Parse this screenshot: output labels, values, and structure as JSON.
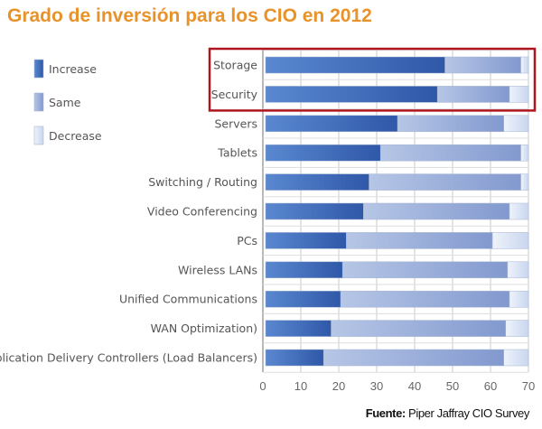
{
  "chart_data": {
    "type": "bar",
    "orientation": "horizontal",
    "stacked": true,
    "title": "Grado de inversión para los CIO en 2012",
    "categories": [
      "Storage",
      "Security",
      "Servers",
      "Tablets",
      "Switching / Routing",
      "Video Conferencing",
      "PCs",
      "Wireless LANs",
      "Unified Communications",
      "WAN Optimization)",
      "Application Delivery Controllers (Load Balancers)"
    ],
    "series": [
      {
        "name": "Increase",
        "color": "#3a66b8",
        "values": [
          48,
          46,
          35.5,
          31,
          28,
          26.5,
          22,
          21,
          20.5,
          18,
          16
        ]
      },
      {
        "name": "Same",
        "color": "#9aafd9",
        "values": [
          20,
          19,
          28,
          37,
          40,
          38.5,
          38.5,
          43.5,
          44.5,
          46,
          47.5
        ]
      },
      {
        "name": "Decrease",
        "color": "#dde6f5",
        "values": [
          2,
          5,
          6.5,
          2,
          2,
          5,
          9.5,
          5.5,
          5,
          6,
          6.5
        ]
      }
    ],
    "xlim": [
      0,
      70
    ],
    "xticks": [
      "0",
      "10",
      "20",
      "30",
      "40",
      "50",
      "60",
      "70"
    ],
    "grid": true,
    "legend_position": "left",
    "highlight_categories": [
      "Storage",
      "Security"
    ],
    "highlight_color": "#b0141e"
  },
  "source": {
    "label": "Fuente:",
    "text": " Piper Jaffray CIO Survey"
  }
}
